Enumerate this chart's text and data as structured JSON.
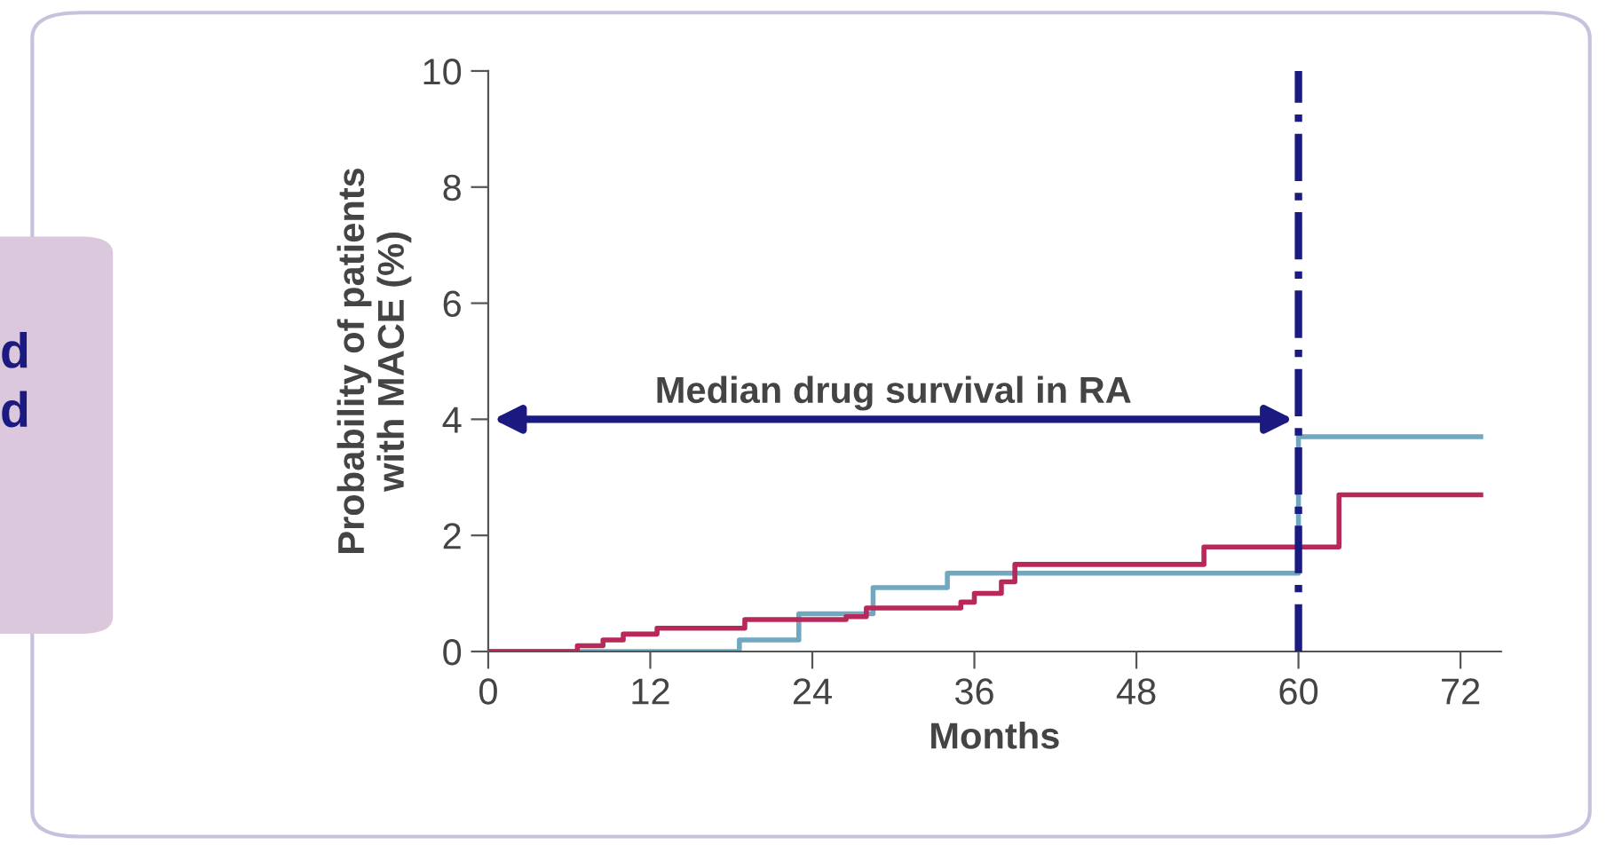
{
  "chart_data": {
    "type": "step",
    "xlabel": "Months",
    "ylabel": "Probability of patients\nwith MACE (%)",
    "xlim": [
      0,
      75
    ],
    "ylim": [
      0,
      10
    ],
    "xticks": [
      0,
      12,
      24,
      36,
      48,
      60,
      72
    ],
    "yticks": [
      0,
      2,
      4,
      6,
      8,
      10
    ],
    "grid": false,
    "marker": "none",
    "line_style": "solid",
    "series": [
      {
        "color": "#6fa8c0",
        "x": [
          0,
          18.6,
          23,
          28.5,
          34,
          60,
          73.5
        ],
        "values": [
          0,
          0.2,
          0.65,
          1.1,
          1.35,
          3.7,
          3.7
        ]
      },
      {
        "color": "#b8285a",
        "x": [
          0,
          6.6,
          8.5,
          10,
          12.5,
          19,
          26.5,
          28,
          35,
          36,
          38,
          39,
          53,
          63,
          73.5
        ],
        "values": [
          0,
          0.1,
          0.2,
          0.3,
          0.4,
          0.55,
          0.6,
          0.75,
          0.85,
          1.0,
          1.2,
          1.5,
          1.8,
          2.7,
          2.7
        ]
      }
    ],
    "ref_lines": [
      {
        "axis": "x",
        "value": 60,
        "color": "#1a1a80",
        "line_style": "dashdot"
      }
    ],
    "annotations": [
      "Median drug survival in RA",
      "d",
      "d"
    ]
  }
}
